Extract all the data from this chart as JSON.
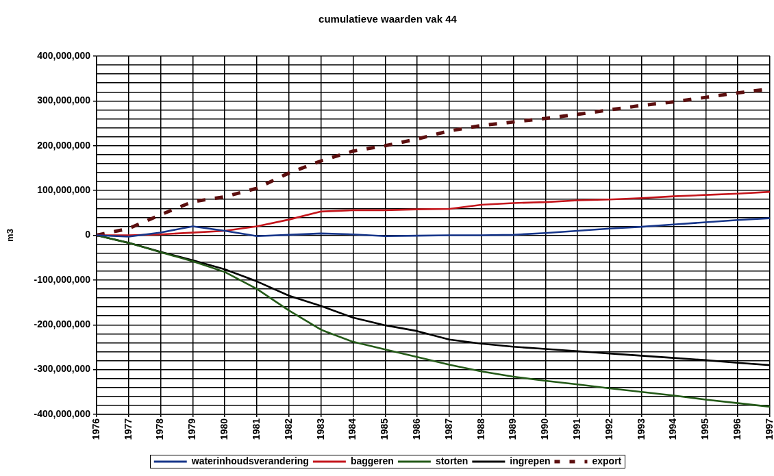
{
  "chart_data": {
    "type": "line",
    "title": "cumulatieve waarden vak 44",
    "ylabel": "m3",
    "categories": [
      "1976",
      "1977",
      "1978",
      "1979",
      "1980",
      "1981",
      "1982",
      "1983",
      "1984",
      "1985",
      "1986",
      "1987",
      "1988",
      "1989",
      "1990",
      "1991",
      "1992",
      "1993",
      "1994",
      "1995",
      "1996",
      "1997"
    ],
    "ylim": [
      -400000000,
      400000000
    ],
    "yticks": [
      {
        "value": -400000000,
        "label": "-400,000,000"
      },
      {
        "value": -380000000,
        "label": null
      },
      {
        "value": -360000000,
        "label": null
      },
      {
        "value": -340000000,
        "label": null
      },
      {
        "value": -320000000,
        "label": null
      },
      {
        "value": -300000000,
        "label": "-300,000,000"
      },
      {
        "value": -280000000,
        "label": null
      },
      {
        "value": -260000000,
        "label": null
      },
      {
        "value": -240000000,
        "label": null
      },
      {
        "value": -220000000,
        "label": null
      },
      {
        "value": -200000000,
        "label": "-200,000,000"
      },
      {
        "value": -180000000,
        "label": null
      },
      {
        "value": -160000000,
        "label": null
      },
      {
        "value": -140000000,
        "label": null
      },
      {
        "value": -120000000,
        "label": null
      },
      {
        "value": -100000000,
        "label": "-100,000,000"
      },
      {
        "value": -80000000,
        "label": null
      },
      {
        "value": -60000000,
        "label": null
      },
      {
        "value": -40000000,
        "label": null
      },
      {
        "value": -20000000,
        "label": null
      },
      0,
      {
        "value": 20000000,
        "label": null
      },
      {
        "value": 40000000,
        "label": null
      },
      {
        "value": 60000000,
        "label": null
      },
      {
        "value": 80000000,
        "label": null
      },
      {
        "value": 100000000,
        "label": "100,000,000"
      },
      {
        "value": 120000000,
        "label": null
      },
      {
        "value": 140000000,
        "label": null
      },
      {
        "value": 160000000,
        "label": null
      },
      {
        "value": 180000000,
        "label": null
      },
      {
        "value": 200000000,
        "label": "200,000,000"
      },
      {
        "value": 220000000,
        "label": null
      },
      {
        "value": 240000000,
        "label": null
      },
      {
        "value": 260000000,
        "label": null
      },
      {
        "value": 280000000,
        "label": null
      },
      {
        "value": 300000000,
        "label": "300,000,000"
      },
      {
        "value": 320000000,
        "label": null
      },
      {
        "value": 340000000,
        "label": null
      },
      {
        "value": 360000000,
        "label": null
      },
      {
        "value": 380000000,
        "label": null
      },
      {
        "value": 400000000,
        "label": "400,000,000"
      }
    ],
    "grid": true,
    "legend": "bottom",
    "series": [
      {
        "name": "waterinhoudsverandering",
        "color": "#17368a",
        "values": [
          0,
          -3000000,
          6000000,
          20000000,
          10000000,
          -2000000,
          1000000,
          4000000,
          2000000,
          -2000000,
          -1000000,
          0,
          0,
          1000000,
          5000000,
          10000000,
          15000000,
          19000000,
          24000000,
          29000000,
          34000000,
          38000000
        ]
      },
      {
        "name": "baggeren",
        "color": "#c4161c",
        "values": [
          0,
          0,
          2000000,
          6000000,
          10000000,
          20000000,
          35000000,
          53000000,
          56000000,
          56000000,
          58000000,
          59000000,
          68000000,
          72000000,
          74000000,
          78000000,
          80000000,
          83000000,
          87000000,
          90000000,
          93000000,
          97000000
        ]
      },
      {
        "name": "storten",
        "color": "#245a18",
        "values": [
          0,
          -17000000,
          -38000000,
          -58000000,
          -82000000,
          -120000000,
          -168000000,
          -211000000,
          -238000000,
          -255000000,
          -272000000,
          -289000000,
          -304000000,
          -316000000,
          -325000000,
          -333000000,
          -342000000,
          -350000000,
          -358000000,
          -367000000,
          -375000000,
          -383000000
        ]
      },
      {
        "name": "ingrepen",
        "color": "#000000",
        "values": [
          0,
          -17000000,
          -37000000,
          -56000000,
          -76000000,
          -103000000,
          -135000000,
          -158000000,
          -184000000,
          -201000000,
          -214000000,
          -233000000,
          -242000000,
          -249000000,
          -254000000,
          -259000000,
          -264000000,
          -269000000,
          -274000000,
          -279000000,
          -285000000,
          -290000000
        ]
      },
      {
        "name": "export",
        "color": "#5c0f0f",
        "line_style": "dashed",
        "values": [
          0,
          15000000,
          46000000,
          75000000,
          86000000,
          105000000,
          139000000,
          166000000,
          188000000,
          200000000,
          215000000,
          233000000,
          245000000,
          253000000,
          261000000,
          270000000,
          280000000,
          290000000,
          298000000,
          308000000,
          318000000,
          327000000
        ]
      }
    ]
  }
}
